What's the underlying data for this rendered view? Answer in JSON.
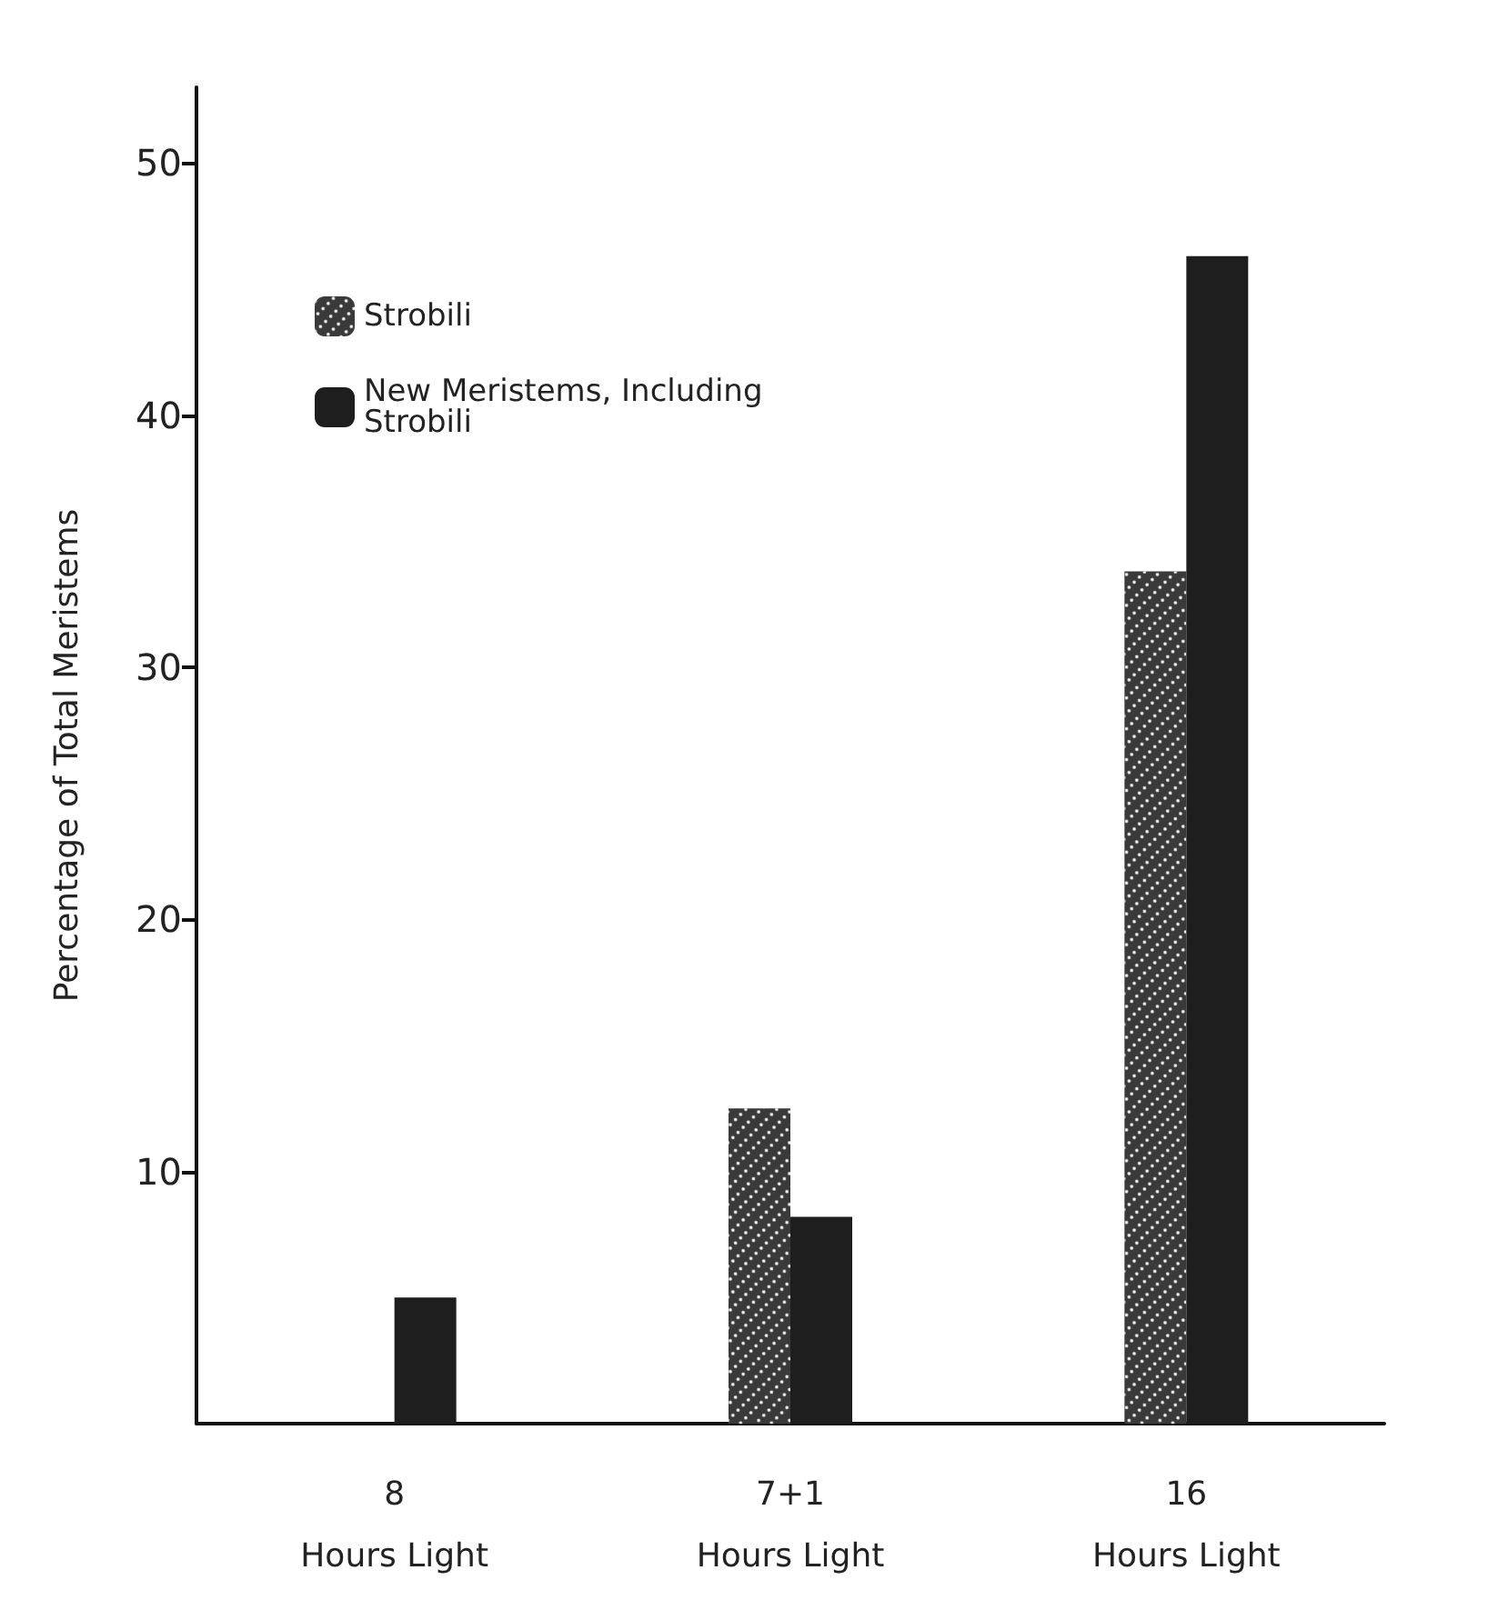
{
  "chart_data": {
    "type": "bar",
    "ylabel": "Percentage of Total Meristems",
    "categories": [
      "8\nHours Light",
      "7+1\nHours Light",
      "16\nHours Light"
    ],
    "series": [
      {
        "name": "Strobili",
        "color": "#3a3a3a",
        "values": [
          0,
          12.5,
          33.8
        ]
      },
      {
        "name": "New Meristems, Including Strobili",
        "color": "#1e1e1e",
        "values": [
          5,
          8.2,
          46.3
        ]
      }
    ],
    "ylim": [
      0,
      53
    ],
    "yticks": [
      10,
      20,
      30,
      40,
      50
    ],
    "grid": false,
    "legend": "top left"
  }
}
